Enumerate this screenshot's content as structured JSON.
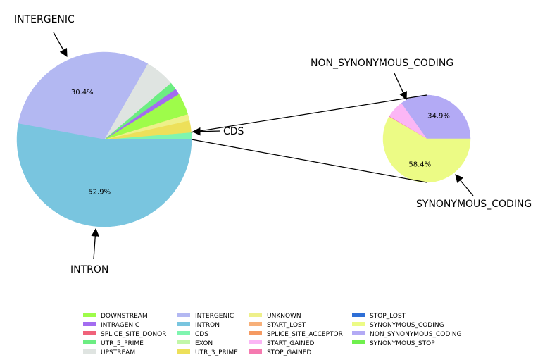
{
  "chart_data": [
    {
      "type": "pie",
      "title": "",
      "start_angle_deg": 0,
      "direction": "counterclockwise",
      "slices": [
        {
          "label": "CDS",
          "value": 1.3,
          "color": "#7ff5b0"
        },
        {
          "label": "UTR_3_PRIME",
          "value": 2.2,
          "color": "#ede05a"
        },
        {
          "label": "UNKNOWN",
          "value": 1.2,
          "color": "#eef08a"
        },
        {
          "label": "DOWNSTREAM",
          "value": 4.0,
          "color": "#9efc4a"
        },
        {
          "label": "INTRAGENIC",
          "value": 1.1,
          "color": "#a36cf0"
        },
        {
          "label": "UTR_5_PRIME",
          "value": 1.4,
          "color": "#6ced82"
        },
        {
          "label": "UPSTREAM",
          "value": 5.5,
          "color": "#dfe4e1"
        },
        {
          "label": "INTERGENIC",
          "value": 30.4,
          "color": "#b3b8f2"
        },
        {
          "label": "INTRON",
          "value": 52.9,
          "color": "#79c5df"
        }
      ],
      "pct_labels": [
        {
          "slice": "INTERGENIC",
          "text": "30.4%"
        },
        {
          "slice": "INTRON",
          "text": "52.9%"
        }
      ],
      "annotations": [
        {
          "text": "INTERGENIC",
          "slice": "INTERGENIC"
        },
        {
          "text": "INTRON",
          "slice": "INTRON"
        },
        {
          "text": "CDS",
          "slice": "CDS"
        }
      ]
    },
    {
      "type": "pie",
      "title": "",
      "start_angle_deg": 0,
      "direction": "counterclockwise",
      "slices": [
        {
          "label": "NON_SYNONYMOUS_CODING",
          "value": 34.9,
          "color": "#b3aaf5"
        },
        {
          "label": "START_GAINED",
          "value": 6.5,
          "color": "#fbb6f5"
        },
        {
          "label": "STOP_GAINED",
          "value": 0.2,
          "color": "#f57ab0"
        },
        {
          "label": "SYNONYMOUS_CODING",
          "value": 58.4,
          "color": "#ecfb85"
        }
      ],
      "pct_labels": [
        {
          "slice": "NON_SYNONYMOUS_CODING",
          "text": "34.9%"
        },
        {
          "slice": "SYNONYMOUS_CODING",
          "text": "58.4%"
        }
      ],
      "annotations": [
        {
          "text": "NON_SYNONYMOUS_CODING",
          "slice": "NON_SYNONYMOUS_CODING"
        },
        {
          "text": "SYNONYMOUS_CODING",
          "slice": "SYNONYMOUS_CODING"
        }
      ]
    }
  ],
  "legend": {
    "placement": "bottom",
    "columns": [
      [
        {
          "label": "DOWNSTREAM",
          "color": "#9efc4a"
        },
        {
          "label": "INTRAGENIC",
          "color": "#a36cf0"
        },
        {
          "label": "SPLICE_SITE_DONOR",
          "color": "#f0627a"
        },
        {
          "label": "UTR_5_PRIME",
          "color": "#6ced82"
        },
        {
          "label": "UPSTREAM",
          "color": "#dfe4e1"
        }
      ],
      [
        {
          "label": "INTERGENIC",
          "color": "#b3b8f2"
        },
        {
          "label": "INTRON",
          "color": "#79c5df"
        },
        {
          "label": "CDS",
          "color": "#7ff5b0"
        },
        {
          "label": "EXON",
          "color": "#c2f7a8"
        },
        {
          "label": "UTR_3_PRIME",
          "color": "#ede05a"
        }
      ],
      [
        {
          "label": "UNKNOWN",
          "color": "#eef08a"
        },
        {
          "label": "START_LOST",
          "color": "#f7b07a"
        },
        {
          "label": "SPLICE_SITE_ACCEPTOR",
          "color": "#f59a62"
        },
        {
          "label": "START_GAINED",
          "color": "#fbb6f5"
        },
        {
          "label": "STOP_GAINED",
          "color": "#f57ab0"
        }
      ],
      [
        {
          "label": "STOP_LOST",
          "color": "#2f6fd6"
        },
        {
          "label": "SYNONYMOUS_CODING",
          "color": "#ecfb85"
        },
        {
          "label": "NON_SYNONYMOUS_CODING",
          "color": "#b3aaf5"
        },
        {
          "label": "SYNONYMOUS_STOP",
          "color": "#6ff04e"
        }
      ]
    ]
  }
}
